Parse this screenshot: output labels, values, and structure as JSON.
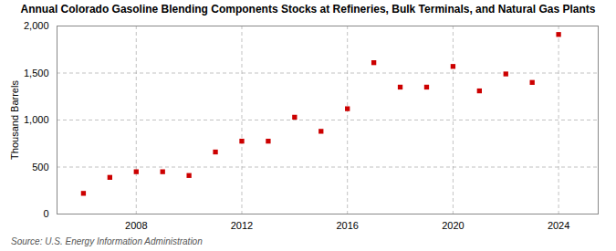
{
  "chart_data": {
    "type": "scatter",
    "title": "Annual Colorado Gasoline Blending Components Stocks at Refineries, Bulk Terminals, and Natural Gas Plants",
    "ylabel": "Thousand Barrels",
    "source": "Source: U.S. Energy Information Administration",
    "x": [
      2006,
      2007,
      2008,
      2009,
      2010,
      2011,
      2012,
      2013,
      2014,
      2015,
      2016,
      2017,
      2018,
      2019,
      2020,
      2021,
      2022,
      2023,
      2024
    ],
    "values": [
      220,
      390,
      450,
      450,
      410,
      660,
      775,
      775,
      1030,
      880,
      1120,
      1610,
      1350,
      1350,
      1570,
      1310,
      1490,
      1400,
      1910
    ],
    "color": "#cc0000",
    "marker": "square",
    "xlim": [
      2005.0,
      2025.5
    ],
    "xticks": [
      2008,
      2012,
      2016,
      2020,
      2024
    ],
    "ylim": [
      0,
      2000
    ],
    "yticks": [
      0,
      500,
      {
        "value": 1000,
        "label": "1,000"
      },
      {
        "value": 1500,
        "label": "1,500"
      },
      {
        "value": 2000,
        "label": "2,000"
      }
    ],
    "grid": true
  }
}
